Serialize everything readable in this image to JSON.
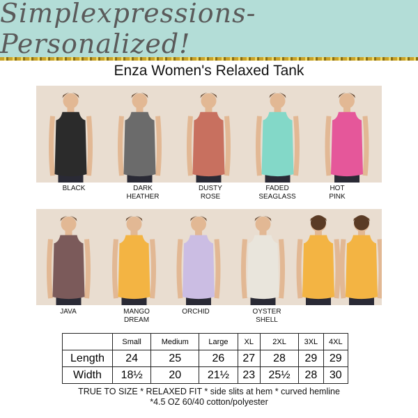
{
  "banner": {
    "text": "Simplexpressions- Personalized!",
    "bg": "#b3ddd7"
  },
  "title": "Enza Women's Relaxed Tank",
  "colors_row1": [
    {
      "label1": "BLACK",
      "label2": "",
      "hex": "#2b2b2b"
    },
    {
      "label1": "DARK",
      "label2": "HEATHER",
      "hex": "#6b6b6b"
    },
    {
      "label1": "DUSTY",
      "label2": "ROSE",
      "hex": "#c8705f"
    },
    {
      "label1": "FADED",
      "label2": "SEAGLASS",
      "hex": "#83d8c8"
    },
    {
      "label1": "HOT",
      "label2": "PINK",
      "hex": "#e5579a"
    }
  ],
  "colors_row2": [
    {
      "label1": "JAVA",
      "label2": "",
      "hex": "#7b5a5a"
    },
    {
      "label1": "MANGO",
      "label2": "DREAM",
      "hex": "#f3b443"
    },
    {
      "label1": "ORCHID",
      "label2": "",
      "hex": "#cbbde3"
    },
    {
      "label1": "OYSTER",
      "label2": "SHELL",
      "hex": "#e9e5dc"
    }
  ],
  "size_chart": {
    "headers": [
      "",
      "Small",
      "Medium",
      "Large",
      "XL",
      "2XL",
      "3XL",
      "4XL"
    ],
    "rows": [
      [
        "Length",
        "24",
        "25",
        "26",
        "27",
        "28",
        "29",
        "29"
      ],
      [
        "Width",
        "18½",
        "20",
        "21½",
        "23",
        "25½",
        "28",
        "30"
      ]
    ]
  },
  "notes": {
    "line1": "TRUE TO SIZE * RELAXED FIT * side slits at hem * curved hemline",
    "line2": "*4.5 OZ 60/40 cotton/polyester"
  }
}
